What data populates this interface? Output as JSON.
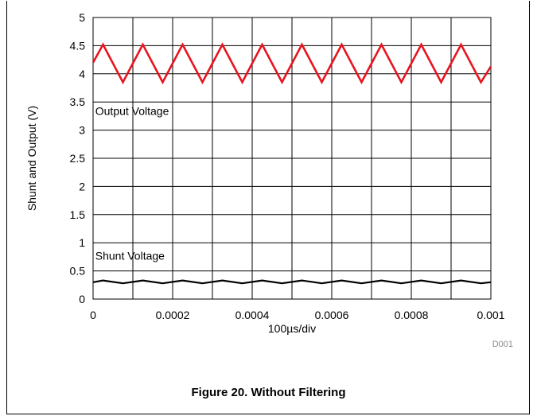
{
  "chart_data": {
    "type": "line",
    "xlabel": "100µs/div",
    "ylabel": "Shunt and Output (V)",
    "xlim": [
      0,
      0.001
    ],
    "ylim": [
      0,
      5
    ],
    "x_ticks": [
      "0",
      "0.0002",
      "0.0004",
      "0.0006",
      "0.0008",
      "0.001"
    ],
    "y_ticks": [
      "0",
      "0.5",
      "1",
      "1.5",
      "2",
      "2.5",
      "3",
      "3.5",
      "4",
      "4.5",
      "5"
    ],
    "x_grid_step": 0.0001,
    "grid": true,
    "series": [
      {
        "color": "#e8141e",
        "x": [
          0,
          2.5e-05,
          7.5e-05,
          0.000125,
          0.000175,
          0.000225,
          0.000275,
          0.000325,
          0.000375,
          0.000425,
          0.000475,
          0.000525,
          0.000575,
          0.000625,
          0.000675,
          0.000725,
          0.000775,
          0.000825,
          0.000875,
          0.000925,
          0.000975,
          0.001
        ],
        "y": [
          4.2,
          4.52,
          3.85,
          4.52,
          3.85,
          4.52,
          3.85,
          4.52,
          3.85,
          4.52,
          3.85,
          4.52,
          3.85,
          4.52,
          3.85,
          4.52,
          3.85,
          4.52,
          3.85,
          4.52,
          3.85,
          4.13
        ]
      },
      {
        "color": "#000000",
        "x": [
          0,
          2.5e-05,
          7.5e-05,
          0.000125,
          0.000175,
          0.000225,
          0.000275,
          0.000325,
          0.000375,
          0.000425,
          0.000475,
          0.000525,
          0.000575,
          0.000625,
          0.000675,
          0.000725,
          0.000775,
          0.000825,
          0.000875,
          0.000925,
          0.000975,
          0.001
        ],
        "y": [
          0.3,
          0.33,
          0.28,
          0.33,
          0.28,
          0.33,
          0.28,
          0.33,
          0.28,
          0.33,
          0.28,
          0.33,
          0.28,
          0.33,
          0.28,
          0.33,
          0.28,
          0.33,
          0.28,
          0.33,
          0.28,
          0.3
        ]
      }
    ],
    "annotations": [
      {
        "text": "Output Voltage",
        "x": 1.5e-06,
        "y": 3.27
      },
      {
        "text": "Shunt Voltage",
        "x": 1.5e-06,
        "y": 0.7
      }
    ],
    "corner_code": "D001"
  },
  "caption": "Figure 20. Without Filtering"
}
